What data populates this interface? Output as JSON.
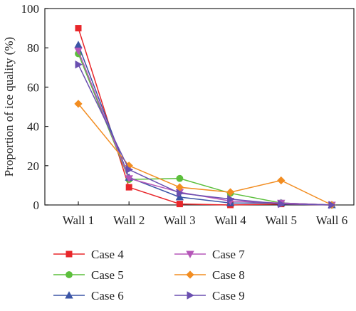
{
  "chart_data": {
    "type": "line",
    "title": "",
    "xlabel": "",
    "ylabel": "Proportion of ice quality (%)",
    "categories": [
      "Wall 1",
      "Wall 2",
      "Wall 3",
      "Wall 4",
      "Wall 5",
      "Wall 6"
    ],
    "ylim": [
      0,
      100
    ],
    "yticks": [
      0,
      20,
      40,
      60,
      80,
      100
    ],
    "grid": false,
    "legend_position": "bottom",
    "series": [
      {
        "name": "Case 4",
        "color": "#e8262a",
        "marker": "square",
        "values": [
          90,
          9,
          0.5,
          0,
          0.5,
          0
        ]
      },
      {
        "name": "Case 5",
        "color": "#5cbf3c",
        "marker": "circle",
        "values": [
          77,
          13,
          13.5,
          6,
          1,
          0
        ]
      },
      {
        "name": "Case 6",
        "color": "#3b55a6",
        "marker": "triangle-up",
        "values": [
          81.5,
          14,
          4,
          1,
          1,
          0
        ]
      },
      {
        "name": "Case 7",
        "color": "#b556b8",
        "marker": "triangle-down",
        "values": [
          78.5,
          13.5,
          6.5,
          2,
          1,
          0
        ]
      },
      {
        "name": "Case 8",
        "color": "#f28d21",
        "marker": "diamond",
        "values": [
          51.5,
          20,
          9,
          6.5,
          12.5,
          0
        ]
      },
      {
        "name": "Case 9",
        "color": "#6a4fb0",
        "marker": "triangle-right",
        "values": [
          71.5,
          18,
          6,
          3,
          0.5,
          0
        ]
      }
    ]
  }
}
